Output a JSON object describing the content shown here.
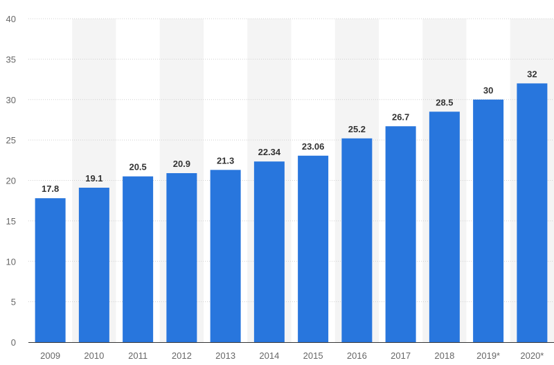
{
  "chart_data": {
    "type": "bar",
    "categories": [
      "2009",
      "2010",
      "2011",
      "2012",
      "2013",
      "2014",
      "2015",
      "2016",
      "2017",
      "2018",
      "2019*",
      "2020*"
    ],
    "values": [
      17.8,
      19.1,
      20.5,
      20.9,
      21.3,
      22.34,
      23.06,
      25.2,
      26.7,
      28.5,
      30,
      32
    ],
    "value_labels": [
      "17.8",
      "19.1",
      "20.5",
      "20.9",
      "21.3",
      "22.34",
      "23.06",
      "25.2",
      "26.7",
      "28.5",
      "30",
      "32"
    ],
    "yticks": [
      "0",
      "5",
      "10",
      "15",
      "20",
      "25",
      "30",
      "35",
      "40"
    ],
    "ylim": [
      0,
      40
    ],
    "title": "",
    "xlabel": "",
    "ylabel": "",
    "grid": true,
    "legend": "none",
    "colors": {
      "bar": "#2876dd",
      "band": "#f4f4f4",
      "grid": "#cfcfcf",
      "axis": "#333333"
    }
  }
}
